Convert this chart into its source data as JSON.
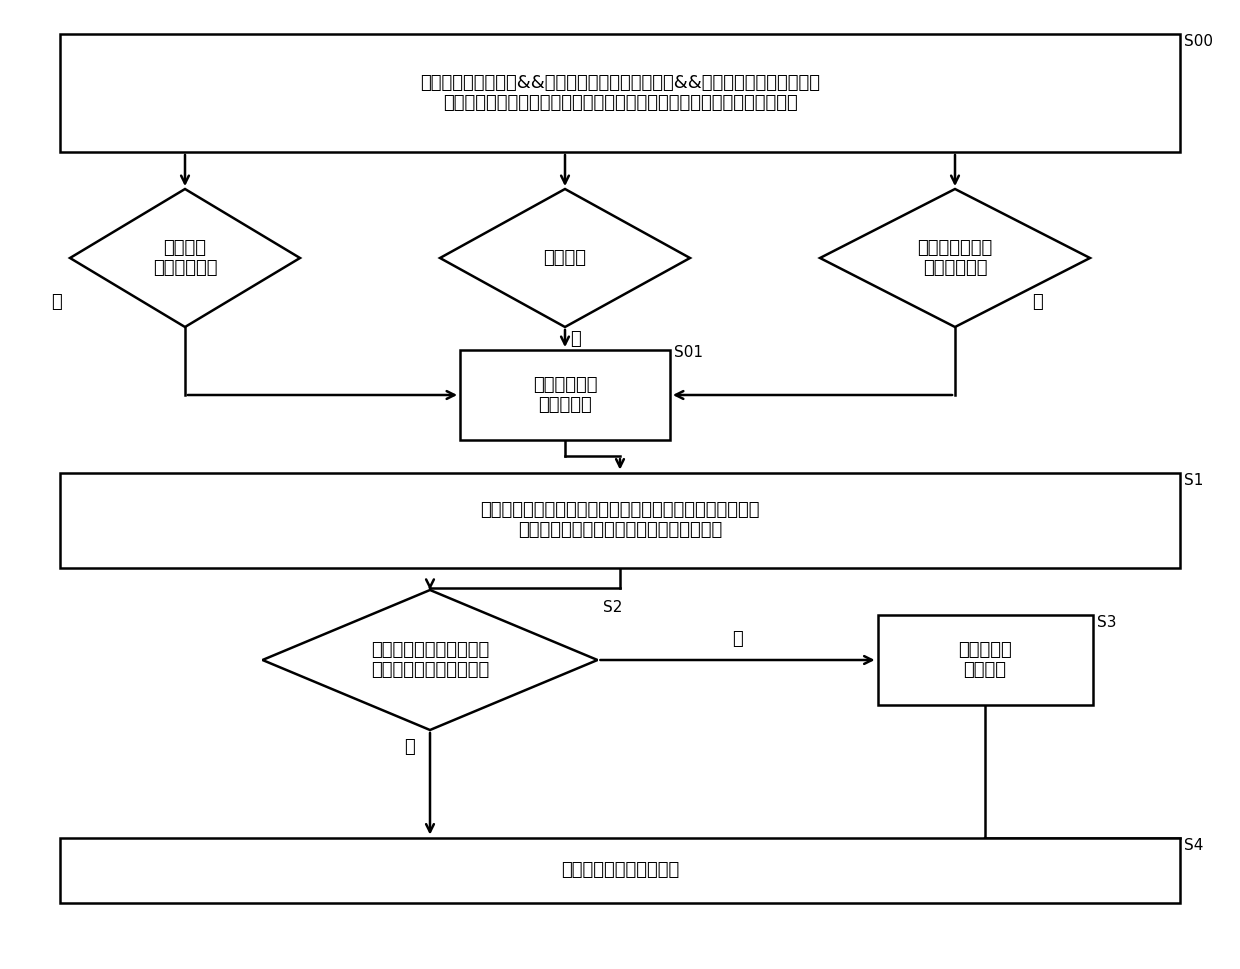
{
  "bg_color": "#ffffff",
  "line_color": "#000000",
  "font_color": "#000000",
  "figsize": [
    12.4,
    9.69
  ],
  "dpi": 100,
  "s00_label": "S00",
  "s01_label": "S01",
  "s1_label": "S1",
  "s2_label": "S2",
  "s3_label": "S3",
  "s4_label": "S4",
  "box_s00_text": "（挡位切换至空挡）&&（实际车速大于第一车速）&&（发动机实际转速大于第\n一转速）时，进行发动机转速干预，以降低所述发动机实际转速的下降速度",
  "diamond_left_text": "实际车速\n小于第一车速",
  "diamond_center_text": "挡位非空",
  "diamond_right_text": "发动机实际转速\n小于第一转速",
  "box_s01_text": "退出所述发动\n机转速干预",
  "box_s1_text": "获取换挡后的挡位、发动机实际转速及实际车速，并根据所\n述挡位和所述实际车速计算发动机目标转速",
  "diamond_s2_text": "发动机目标转速与发动机\n实际转速之差＜第一阈值",
  "box_s3_text": "执行发动机\n转速干预",
  "box_s4_text": "控制所述电子离合器接合",
  "yes_label": "是",
  "no_label": "否"
}
